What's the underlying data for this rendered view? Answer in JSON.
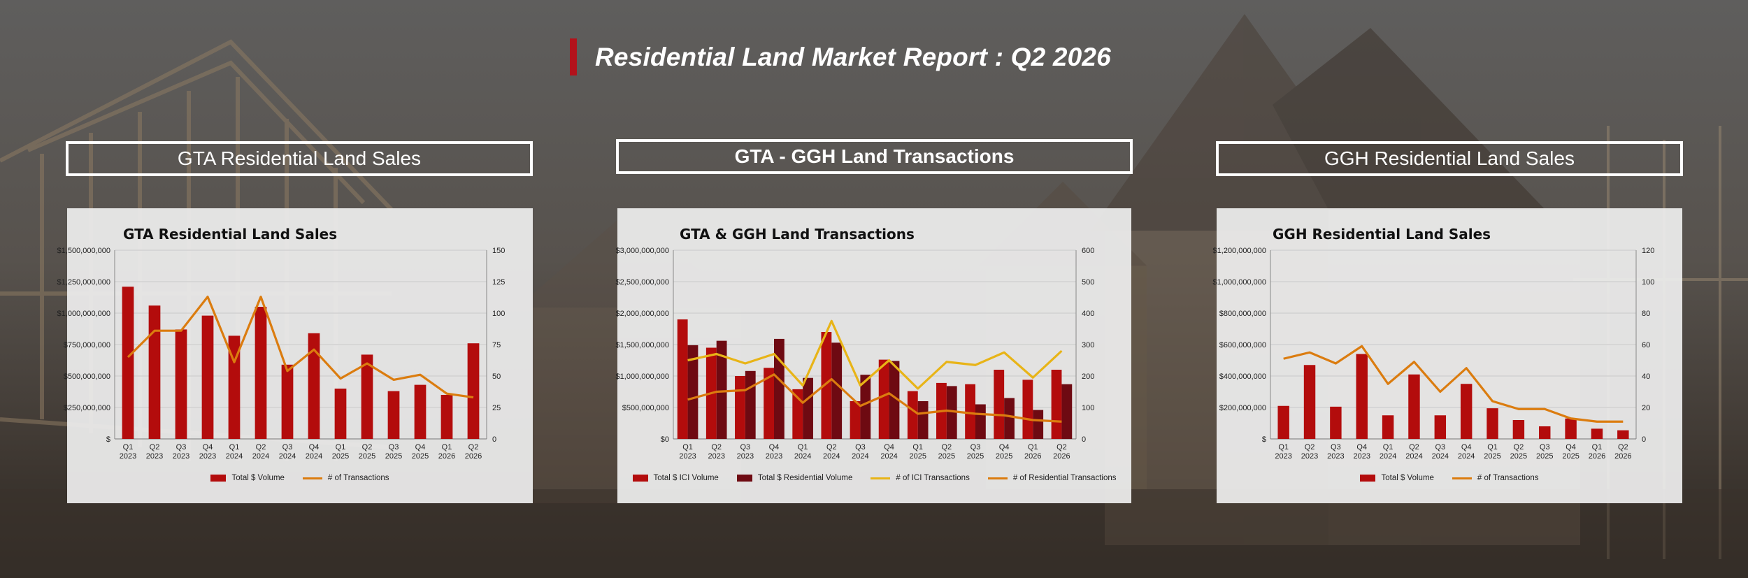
{
  "header": {
    "title": "Residential Land Market Report : Q2 2026"
  },
  "sections": {
    "left": "GTA Residential Land Sales",
    "middle": "GTA - GGH Land Transactions",
    "right": "GGH Residential Land Sales"
  },
  "colors": {
    "accent": "#b3121b",
    "bar_red": "#b30c0c",
    "bar_dark": "#6e0a12",
    "line_orange": "#db7c0f",
    "line_yellow": "#e8b417"
  },
  "chart_data": [
    {
      "type": "bar",
      "title": "GTA Residential Land Sales",
      "categories": [
        [
          "Q1",
          "2023"
        ],
        [
          "Q2",
          "2023"
        ],
        [
          "Q3",
          "2023"
        ],
        [
          "Q4",
          "2023"
        ],
        [
          "Q1",
          "2024"
        ],
        [
          "Q2",
          "2024"
        ],
        [
          "Q3",
          "2024"
        ],
        [
          "Q4",
          "2024"
        ],
        [
          "Q1",
          "2025"
        ],
        [
          "Q2",
          "2025"
        ],
        [
          "Q3",
          "2025"
        ],
        [
          "Q4",
          "2025"
        ],
        [
          "Q1",
          "2026"
        ],
        [
          "Q2",
          "2026"
        ]
      ],
      "yleft": {
        "min": 0,
        "max": 1500000000,
        "ticks": [
          "$",
          "$250,000,000",
          "$500,000,000",
          "$750,000,000",
          "$1,000,000,000",
          "$1,250,000,000",
          "$1,500,000,000"
        ]
      },
      "yright": {
        "min": 0,
        "max": 150,
        "ticks": [
          "0",
          "25",
          "50",
          "75",
          "100",
          "125",
          "150"
        ]
      },
      "bars": [
        {
          "name": "Total $ Volume",
          "color": "#b30c0c",
          "values": [
            1210000000,
            1060000000,
            870000000,
            980000000,
            820000000,
            1050000000,
            590000000,
            840000000,
            400000000,
            670000000,
            380000000,
            430000000,
            350000000,
            760000000
          ]
        }
      ],
      "lines": [
        {
          "name": "# of Transactions",
          "color": "#db7c0f",
          "values": [
            65,
            86,
            86,
            113,
            61,
            113,
            54,
            71,
            48,
            60,
            47,
            51,
            36,
            33
          ]
        }
      ],
      "grid": true,
      "legend": "bottom"
    },
    {
      "type": "bar",
      "title": "GTA & GGH Land Transactions",
      "categories": [
        [
          "Q1",
          "2023"
        ],
        [
          "Q2",
          "2023"
        ],
        [
          "Q3",
          "2023"
        ],
        [
          "Q4",
          "2023"
        ],
        [
          "Q1",
          "2024"
        ],
        [
          "Q2",
          "2024"
        ],
        [
          "Q3",
          "2024"
        ],
        [
          "Q4",
          "2024"
        ],
        [
          "Q1",
          "2025"
        ],
        [
          "Q2",
          "2025"
        ],
        [
          "Q3",
          "2025"
        ],
        [
          "Q4",
          "2025"
        ],
        [
          "Q1",
          "2026"
        ],
        [
          "Q2",
          "2026"
        ]
      ],
      "yleft": {
        "min": 0,
        "max": 3000000000,
        "ticks": [
          "$0",
          "$500,000,000",
          "$1,000,000,000",
          "$1,500,000,000",
          "$2,000,000,000",
          "$2,500,000,000",
          "$3,000,000,000"
        ]
      },
      "yright": {
        "min": 0,
        "max": 600,
        "ticks": [
          "0",
          "100",
          "200",
          "300",
          "400",
          "500",
          "600"
        ]
      },
      "bars": [
        {
          "name": "Total $ ICI Volume",
          "color": "#b30c0c",
          "values": [
            1900000000,
            1450000000,
            1000000000,
            1130000000,
            790000000,
            1700000000,
            600000000,
            1260000000,
            760000000,
            890000000,
            870000000,
            1100000000,
            940000000,
            1100000000
          ]
        },
        {
          "name": "Total $ Residential Volume",
          "color": "#6e0a12",
          "values": [
            1490000000,
            1560000000,
            1080000000,
            1590000000,
            970000000,
            1530000000,
            1020000000,
            1240000000,
            600000000,
            840000000,
            550000000,
            650000000,
            460000000,
            870000000
          ]
        }
      ],
      "lines": [
        {
          "name": "# of ICI Transactions",
          "color": "#e8b417",
          "values": [
            250,
            270,
            240,
            270,
            170,
            375,
            170,
            250,
            160,
            245,
            235,
            275,
            195,
            280
          ]
        },
        {
          "name": "# of Residential Transactions",
          "color": "#db7c0f",
          "values": [
            125,
            150,
            155,
            205,
            115,
            190,
            105,
            145,
            80,
            90,
            80,
            75,
            60,
            55
          ]
        }
      ],
      "grid": true,
      "legend": "bottom"
    },
    {
      "type": "bar",
      "title": "GGH Residential Land Sales",
      "categories": [
        [
          "Q1",
          "2023"
        ],
        [
          "Q2",
          "2023"
        ],
        [
          "Q3",
          "2023"
        ],
        [
          "Q4",
          "2023"
        ],
        [
          "Q1",
          "2024"
        ],
        [
          "Q2",
          "2024"
        ],
        [
          "Q3",
          "2024"
        ],
        [
          "Q4",
          "2024"
        ],
        [
          "Q1",
          "2025"
        ],
        [
          "Q2",
          "2025"
        ],
        [
          "Q3",
          "2025"
        ],
        [
          "Q4",
          "2025"
        ],
        [
          "Q1",
          "2026"
        ],
        [
          "Q2",
          "2026"
        ]
      ],
      "yleft": {
        "min": 0,
        "max": 1200000000,
        "ticks": [
          "$",
          "$200,000,000",
          "$400,000,000",
          "$600,000,000",
          "$800,000,000",
          "$1,000,000,000",
          "$1,200,000,000"
        ]
      },
      "yright": {
        "min": 0,
        "max": 120,
        "ticks": [
          "0",
          "20",
          "40",
          "60",
          "80",
          "100",
          "120"
        ]
      },
      "bars": [
        {
          "name": "Total $ Volume",
          "color": "#b30c0c",
          "values": [
            210000000,
            470000000,
            205000000,
            540000000,
            150000000,
            410000000,
            150000000,
            350000000,
            195000000,
            120000000,
            80000000,
            130000000,
            65000000,
            55000000
          ]
        }
      ],
      "lines": [
        {
          "name": "# of Transactions",
          "color": "#db7c0f",
          "values": [
            51,
            55,
            48,
            59,
            35,
            49,
            30,
            45,
            24,
            19,
            19,
            13,
            11,
            11
          ]
        }
      ],
      "grid": true,
      "legend": "bottom"
    }
  ]
}
